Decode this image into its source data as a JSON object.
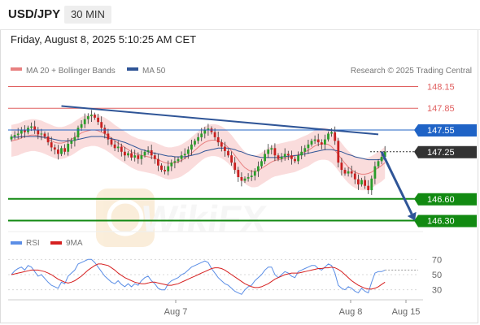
{
  "header": {
    "symbol": "USD/JPY",
    "timeframe": "30 MIN",
    "datetime": "Friday, August 8, 2025 5:10:25 AM CET"
  },
  "legend": {
    "ma20_label": "MA 20 + Bollinger Bands",
    "ma50_label": "MA 50",
    "credit": "Research © 2025 Trading Central",
    "rsi_label": "RSI",
    "rsi_ma_label": "9MA"
  },
  "colors": {
    "resistance": "#e06060",
    "pivot": "#1f63c6",
    "support": "#128a12",
    "current": "#333333",
    "trendline": "#2f5597",
    "band_fill": "#f8d0d0",
    "ma50": "#2f5597",
    "ma20": "#e88080",
    "rsi": "#5b8ee6",
    "rsi_ma": "#d62020",
    "bull": "#2a9d2a",
    "bear": "#c82020"
  },
  "chart_data": [
    {
      "type": "candlestick",
      "pair": "USD/JPY",
      "interval": "30 MIN",
      "ylim": [
        146.25,
        148.2
      ],
      "x_ticks": [
        "Aug 7",
        "Aug 8",
        "Aug 15"
      ],
      "levels": [
        {
          "value": 148.15,
          "label": "148.15",
          "kind": "resistance"
        },
        {
          "value": 147.85,
          "label": "147.85",
          "kind": "resistance"
        },
        {
          "value": 147.55,
          "label": "147.55",
          "kind": "pivot"
        },
        {
          "value": 147.25,
          "label": "147.25",
          "kind": "current"
        },
        {
          "value": 146.6,
          "label": "146.60",
          "kind": "support"
        },
        {
          "value": 146.3,
          "label": "146.30",
          "kind": "support"
        }
      ],
      "trendline": {
        "start": {
          "bar": 15,
          "price": 147.88
        },
        "end": {
          "bar": 110,
          "price": 147.49
        }
      },
      "forecast_arrow": {
        "start": {
          "bar": 111,
          "price": 147.25
        },
        "end": {
          "bar": 121,
          "price": 146.3
        }
      },
      "closes": [
        147.46,
        147.48,
        147.5,
        147.55,
        147.52,
        147.58,
        147.6,
        147.55,
        147.49,
        147.5,
        147.46,
        147.38,
        147.31,
        147.28,
        147.22,
        147.3,
        147.25,
        147.36,
        147.4,
        147.45,
        147.58,
        147.63,
        147.7,
        147.74,
        147.76,
        147.72,
        147.66,
        147.58,
        147.5,
        147.42,
        147.35,
        147.3,
        147.32,
        147.25,
        147.2,
        147.23,
        147.17,
        147.2,
        147.15,
        147.2,
        147.25,
        147.27,
        147.2,
        147.15,
        147.06,
        147.0,
        146.98,
        147.05,
        147.1,
        147.12,
        147.15,
        147.2,
        147.22,
        147.28,
        147.35,
        147.4,
        147.45,
        147.5,
        147.55,
        147.57,
        147.52,
        147.45,
        147.38,
        147.32,
        147.26,
        147.2,
        147.1,
        147.0,
        146.9,
        146.85,
        146.88,
        146.9,
        146.92,
        146.98,
        147.05,
        147.12,
        147.22,
        147.28,
        147.3,
        147.2,
        147.15,
        147.18,
        147.22,
        147.2,
        147.15,
        147.12,
        147.2,
        147.25,
        147.3,
        147.35,
        147.4,
        147.42,
        147.38,
        147.35,
        147.42,
        147.5,
        147.52,
        147.4,
        147.1,
        147.0,
        146.95,
        146.98,
        146.95,
        146.87,
        146.8,
        146.86,
        146.78,
        146.72,
        146.88,
        147.05,
        147.12,
        147.18,
        147.25
      ],
      "ma20": [
        147.4,
        147.41,
        147.42,
        147.44,
        147.46,
        147.47,
        147.48,
        147.48,
        147.47,
        147.46,
        147.44,
        147.42,
        147.4,
        147.38,
        147.37,
        147.37,
        147.38,
        147.4,
        147.42,
        147.45,
        147.48,
        147.51,
        147.53,
        147.54,
        147.55,
        147.55,
        147.54,
        147.52,
        147.5,
        147.47,
        147.44,
        147.4,
        147.37,
        147.34,
        147.31,
        147.28,
        147.25,
        147.23,
        147.21,
        147.2,
        147.19,
        147.18,
        147.17,
        147.16,
        147.14,
        147.12,
        147.1,
        147.09,
        147.09,
        147.1,
        147.11,
        147.13,
        147.16,
        147.19,
        147.23,
        147.27,
        147.31,
        147.35,
        147.38,
        147.4,
        147.41,
        147.41,
        147.4,
        147.38,
        147.35,
        147.31,
        147.26,
        147.2,
        147.14,
        147.08,
        147.03,
        147.0,
        146.98,
        146.98,
        146.99,
        147.02,
        147.05,
        147.08,
        147.11,
        147.13,
        147.14,
        147.15,
        147.16,
        147.17,
        147.18,
        147.19,
        147.21,
        147.23,
        147.25,
        147.27,
        147.3,
        147.33,
        147.35,
        147.36,
        147.36,
        147.35,
        147.32,
        147.27,
        147.21,
        147.15,
        147.09,
        147.04,
        147.0,
        146.97,
        146.95,
        146.94,
        146.94,
        146.95,
        146.97,
        147.0,
        147.03,
        147.06,
        147.1
      ],
      "ma50": [
        147.45,
        147.45,
        147.45,
        147.46,
        147.46,
        147.46,
        147.46,
        147.46,
        147.46,
        147.45,
        147.45,
        147.44,
        147.43,
        147.42,
        147.41,
        147.4,
        147.4,
        147.4,
        147.4,
        147.41,
        147.42,
        147.43,
        147.44,
        147.45,
        147.46,
        147.46,
        147.46,
        147.46,
        147.45,
        147.44,
        147.43,
        147.42,
        147.41,
        147.39,
        147.38,
        147.36,
        147.34,
        147.32,
        147.3,
        147.28,
        147.27,
        147.25,
        147.24,
        147.23,
        147.22,
        147.21,
        147.2,
        147.19,
        147.19,
        147.18,
        147.18,
        147.18,
        147.18,
        147.19,
        147.2,
        147.21,
        147.22,
        147.24,
        147.26,
        147.27,
        147.28,
        147.29,
        147.3,
        147.3,
        147.3,
        147.3,
        147.29,
        147.28,
        147.26,
        147.25,
        147.23,
        147.21,
        147.2,
        147.19,
        147.18,
        147.17,
        147.17,
        147.17,
        147.17,
        147.17,
        147.17,
        147.18,
        147.18,
        147.19,
        147.19,
        147.2,
        147.2,
        147.21,
        147.22,
        147.23,
        147.24,
        147.25,
        147.26,
        147.27,
        147.28,
        147.28,
        147.28,
        147.27,
        147.26,
        147.25,
        147.23,
        147.21,
        147.2,
        147.18,
        147.17,
        147.16,
        147.15,
        147.14,
        147.14,
        147.14,
        147.14,
        147.15,
        147.15
      ]
    },
    {
      "type": "line",
      "name": "RSI",
      "ylim": [
        20,
        80
      ],
      "y_ticks": [
        70,
        50,
        30
      ],
      "series": [
        {
          "name": "RSI",
          "values": [
            50,
            55,
            58,
            60,
            56,
            62,
            60,
            54,
            48,
            50,
            45,
            40,
            36,
            34,
            32,
            40,
            38,
            48,
            52,
            56,
            64,
            66,
            68,
            70,
            70,
            66,
            60,
            54,
            48,
            44,
            40,
            38,
            42,
            37,
            34,
            38,
            34,
            38,
            36,
            42,
            46,
            48,
            42,
            38,
            32,
            30,
            30,
            38,
            42,
            44,
            46,
            50,
            52,
            56,
            60,
            62,
            64,
            66,
            68,
            66,
            58,
            52,
            46,
            42,
            38,
            36,
            32,
            28,
            26,
            24,
            30,
            34,
            36,
            42,
            46,
            50,
            56,
            60,
            60,
            50,
            46,
            50,
            54,
            52,
            48,
            46,
            54,
            56,
            58,
            60,
            62,
            62,
            58,
            56,
            60,
            64,
            62,
            52,
            36,
            32,
            30,
            34,
            32,
            28,
            26,
            32,
            28,
            26,
            40,
            52,
            54,
            54,
            56
          ]
        },
        {
          "name": "9MA",
          "values": [
            50,
            51,
            52,
            53,
            54,
            55,
            56,
            56,
            56,
            55,
            54,
            52,
            50,
            47,
            44,
            42,
            40,
            39,
            40,
            42,
            45,
            48,
            52,
            56,
            59,
            62,
            64,
            64,
            63,
            62,
            59,
            56,
            52,
            49,
            46,
            44,
            42,
            40,
            39,
            38,
            38,
            39,
            40,
            40,
            39,
            38,
            37,
            36,
            36,
            37,
            38,
            40,
            42,
            44,
            46,
            48,
            50,
            52,
            54,
            56,
            58,
            59,
            59,
            58,
            56,
            53,
            50,
            47,
            44,
            41,
            38,
            36,
            34,
            33,
            33,
            34,
            36,
            38,
            41,
            44,
            46,
            48,
            50,
            51,
            52,
            52,
            52,
            53,
            54,
            55,
            56,
            57,
            58,
            58,
            59,
            59,
            60,
            59,
            57,
            54,
            50,
            46,
            42,
            39,
            36,
            34,
            32,
            31,
            31,
            32,
            34,
            37,
            40
          ]
        }
      ]
    }
  ]
}
